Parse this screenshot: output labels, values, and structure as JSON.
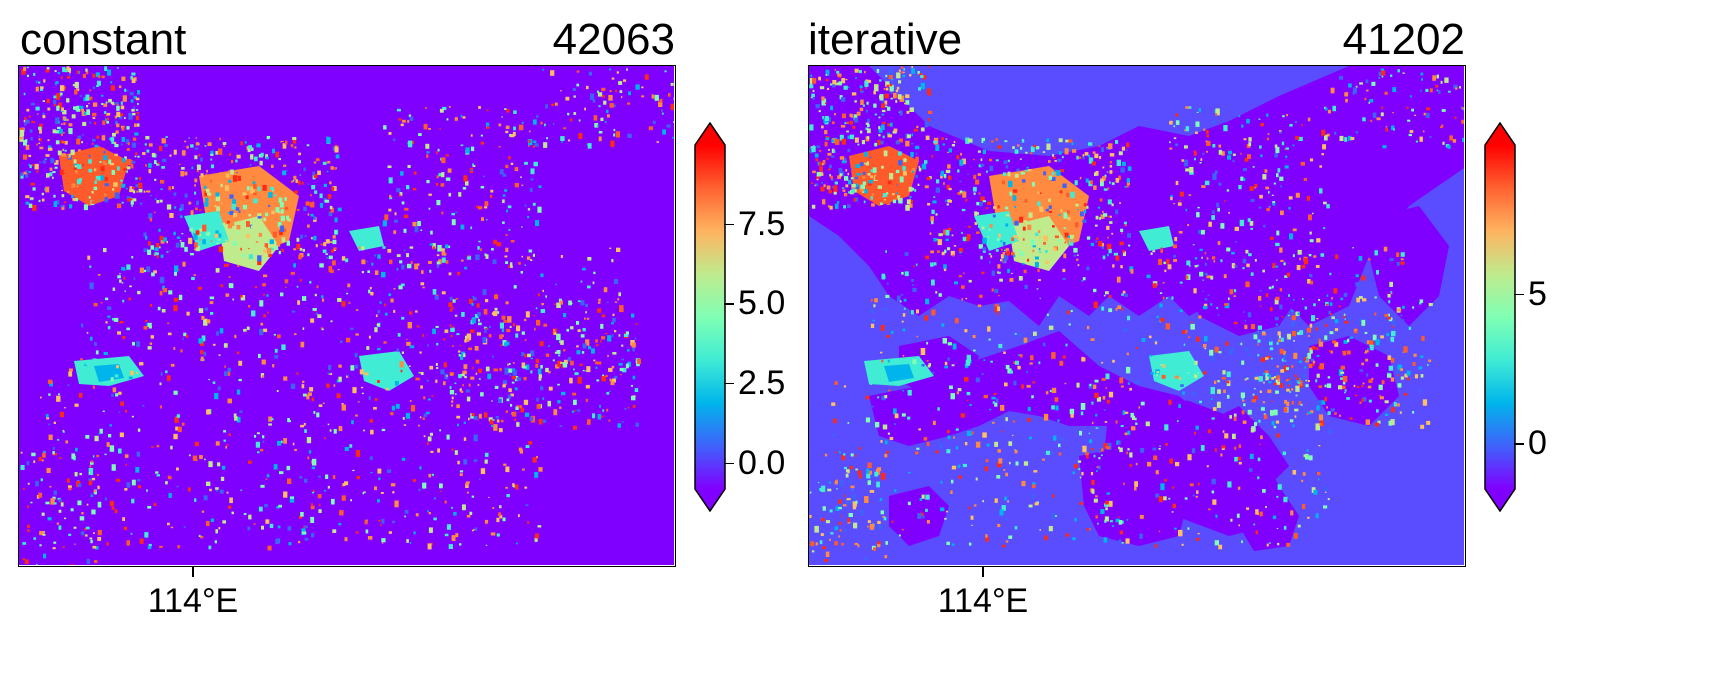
{
  "panels": [
    {
      "title": "constant",
      "count": "42063",
      "background_color": "#8000ff",
      "water_color": "#8000ff",
      "xtick_label": "114°E",
      "colorbar": {
        "colormap": "rainbow",
        "extend": "both",
        "ticks": [
          "0.0",
          "2.5",
          "5.0",
          "7.5"
        ],
        "tick_values": [
          0.0,
          2.5,
          5.0,
          7.5
        ],
        "vmin": -0.8,
        "vmax": 10.0
      }
    },
    {
      "title": "iterative",
      "count": "41202",
      "background_color": "#5a4cff",
      "water_color": "#8000ff",
      "xtick_label": "114°E",
      "colorbar": {
        "colormap": "rainbow",
        "extend": "both",
        "ticks": [
          "0",
          "5"
        ],
        "tick_values": [
          0,
          5
        ],
        "vmin": -1.5,
        "vmax": 10.0
      }
    }
  ]
}
